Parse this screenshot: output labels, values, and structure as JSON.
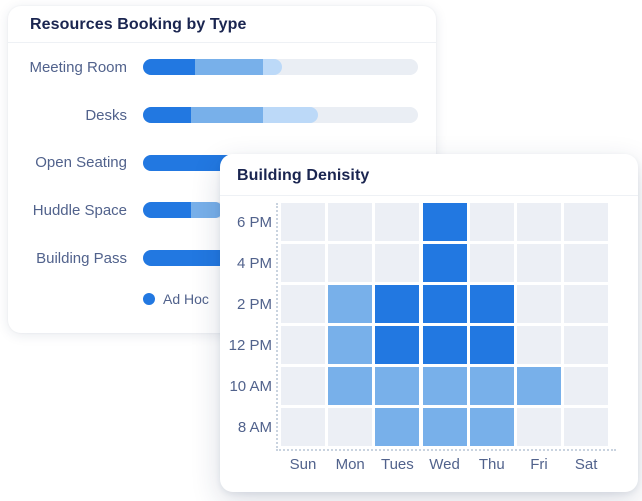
{
  "colors": {
    "accent_dark_blue": "#2278e1",
    "accent_medium_blue": "#78b0ea",
    "accent_light_blue": "#bcd9f8",
    "bar_track": "#eaeef4",
    "heat_empty": "#eceff5",
    "title_navy": "#1a2550",
    "label_slate": "#51628c"
  },
  "chart_data": [
    {
      "type": "bar",
      "variant": "horizontal-stacked-progress",
      "title": "Resources Booking by Type",
      "categories": [
        "Meeting Room",
        "Desks",
        "Open Seating",
        "Huddle Space",
        "Building Pass"
      ],
      "segment_colors": [
        "#2278e1",
        "#78b0ea",
        "#bcd9f8"
      ],
      "track_color": "#eaeef4",
      "segments_pct": [
        [
          19,
          24.5,
          7
        ],
        [
          17.5,
          26,
          20
        ],
        [
          36,
          0,
          0
        ],
        [
          17.5,
          11.5,
          0
        ],
        [
          36,
          0,
          0
        ]
      ],
      "xlim": [
        0,
        100
      ],
      "grid": false,
      "legend_position": "bottom-left",
      "legend": [
        {
          "label": "Ad Hoc",
          "color": "#2278e1"
        }
      ]
    },
    {
      "type": "heatmap",
      "title": "Building Denisity",
      "x_labels": [
        "Sun",
        "Mon",
        "Tues",
        "Wed",
        "Thu",
        "Fri",
        "Sat"
      ],
      "y_labels": [
        "6 PM",
        "4 PM",
        "2 PM",
        "12 PM",
        "10 AM",
        "8 AM"
      ],
      "values": [
        [
          0,
          0,
          0,
          2,
          0,
          0,
          0
        ],
        [
          0,
          0,
          0,
          2,
          0,
          0,
          0
        ],
        [
          0,
          1,
          2,
          2,
          2,
          0,
          0
        ],
        [
          0,
          1,
          2,
          2,
          2,
          0,
          0
        ],
        [
          0,
          1,
          1,
          1,
          1,
          1,
          0
        ],
        [
          0,
          0,
          1,
          1,
          1,
          0,
          0
        ]
      ],
      "value_scale": {
        "0": "none",
        "1": "medium",
        "2": "high"
      },
      "value_colors": {
        "0": "#eceff5",
        "1": "#78b0ea",
        "2": "#2278e1"
      },
      "grid": false,
      "axis_style": "dotted"
    }
  ]
}
